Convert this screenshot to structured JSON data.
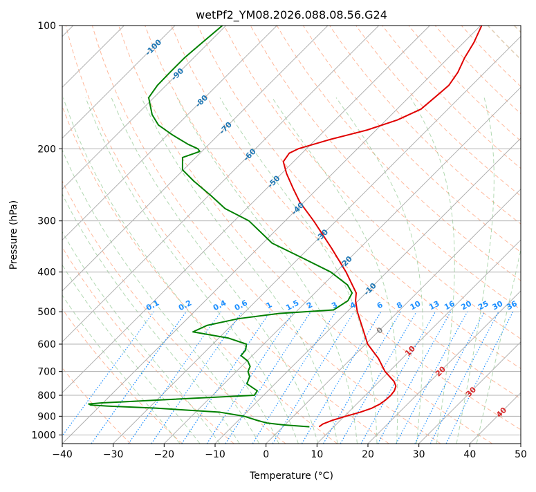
{
  "chart_data": {
    "type": "skew-t",
    "title": "wetPf2_YM08.2026.088.08.56.G24",
    "xlabel": "Temperature (°C)",
    "ylabel": "Pressure (hPa)",
    "xlim": [
      -40,
      50
    ],
    "ylim": [
      1050,
      100
    ],
    "y_scale": "log",
    "grid": true,
    "x_ticks": [
      "−40",
      "−30",
      "−20",
      "−10",
      "0",
      "10",
      "20",
      "30",
      "40",
      "50"
    ],
    "y_ticks": [
      "100",
      "200",
      "300",
      "400",
      "500",
      "600",
      "700",
      "800",
      "900",
      "1000"
    ],
    "x_tick_values": [
      -40,
      -30,
      -20,
      -10,
      0,
      10,
      20,
      30,
      40,
      50
    ],
    "y_tick_values": [
      100,
      200,
      300,
      400,
      500,
      600,
      700,
      800,
      900,
      1000
    ],
    "series": [
      {
        "role": "temperature",
        "color": "#e00000",
        "pressure": [
          955,
          940,
          920,
          900,
          880,
          860,
          840,
          820,
          800,
          780,
          760,
          740,
          700,
          650,
          600,
          550,
          500,
          470,
          450,
          400,
          350,
          300,
          270,
          250,
          230,
          215,
          205,
          200,
          190,
          180,
          170,
          160,
          150,
          140,
          130,
          120,
          110,
          100
        ],
        "temperature": [
          7.1,
          7.3,
          8.5,
          10.3,
          12.3,
          13.8,
          14.6,
          14.9,
          15.0,
          14.8,
          14.2,
          12.9,
          9.2,
          5.3,
          0.4,
          -3.6,
          -8.0,
          -10.5,
          -11.9,
          -18.0,
          -25.5,
          -34.4,
          -40.8,
          -44.8,
          -49.0,
          -52.0,
          -52.5,
          -51.6,
          -47.3,
          -41.8,
          -37.8,
          -35.3,
          -34.9,
          -34.5,
          -35.3,
          -36.8,
          -38.0,
          -39.8
        ]
      },
      {
        "role": "dewpoint",
        "color": "#008000",
        "pressure": [
          955,
          945,
          935,
          920,
          900,
          880,
          860,
          850,
          845,
          840,
          835,
          830,
          820,
          800,
          780,
          750,
          720,
          700,
          680,
          660,
          640,
          620,
          600,
          580,
          560,
          540,
          520,
          505,
          495,
          470,
          450,
          430,
          400,
          370,
          340,
          300,
          280,
          260,
          240,
          225,
          210,
          203,
          200,
          195,
          185,
          175,
          165,
          150,
          140,
          130,
          120,
          110,
          100
        ],
        "dewpoint": [
          5.2,
          -0.3,
          -3.9,
          -6.5,
          -9.7,
          -15.2,
          -28.6,
          -38.6,
          -42.0,
          -42.6,
          -40.2,
          -36.2,
          -28.4,
          -11.8,
          -12.1,
          -15.5,
          -16.4,
          -17.7,
          -18.3,
          -19.8,
          -22.2,
          -22.4,
          -23.4,
          -28.1,
          -36.3,
          -34.8,
          -30.0,
          -23.0,
          -13.0,
          -12.0,
          -12.7,
          -15.2,
          -21.0,
          -29.2,
          -38.2,
          -47.1,
          -54.2,
          -59.6,
          -65.7,
          -70.2,
          -72.6,
          -70.4,
          -71.3,
          -74.1,
          -79.0,
          -83.7,
          -87.0,
          -91.0,
          -91.7,
          -91.8,
          -91.8,
          -91.3,
          -90.7
        ]
      }
    ],
    "background_lines": {
      "isotherms": "gray solid diagonal",
      "dry_adiabats": "dashed red-orange",
      "moist_adiabats": "dashed green",
      "mixing_ratio": "dotted blue"
    },
    "isotherm_labels": [
      "-100",
      "-90",
      "-80",
      "-70",
      "-60",
      "-50",
      "-40",
      "-30",
      "-20",
      "-10",
      "0",
      "10",
      "20",
      "30",
      "40"
    ],
    "isotherm_label_values": [
      -100,
      -90,
      -80,
      -70,
      -60,
      -50,
      -40,
      -30,
      -20,
      -10,
      0,
      10,
      20,
      30,
      40
    ],
    "mixing_ratio_labels": [
      "0.1",
      "0.2",
      "0.4",
      "0.6",
      "1",
      "1.5",
      "2",
      "3",
      "4",
      "6",
      "8",
      "10",
      "13",
      "16",
      "20",
      "25",
      "30",
      "36"
    ],
    "mixing_ratio_values": [
      0.1,
      0.2,
      0.4,
      0.6,
      1,
      1.5,
      2,
      3,
      4,
      6,
      8,
      10,
      13,
      16,
      20,
      25,
      30,
      36
    ],
    "colors": {
      "isotherm_cold_label": "#1f77b4",
      "isotherm_zero_label": "#808080",
      "isotherm_warm_label": "#d62728",
      "mixing_ratio_label": "#1e90ff",
      "dry_adiabat": "#ffa07a",
      "moist_adiabat": "#90c890",
      "isotherm_line": "#b0b0b0",
      "far_dry_adiabat": "#d8c0a0"
    }
  }
}
